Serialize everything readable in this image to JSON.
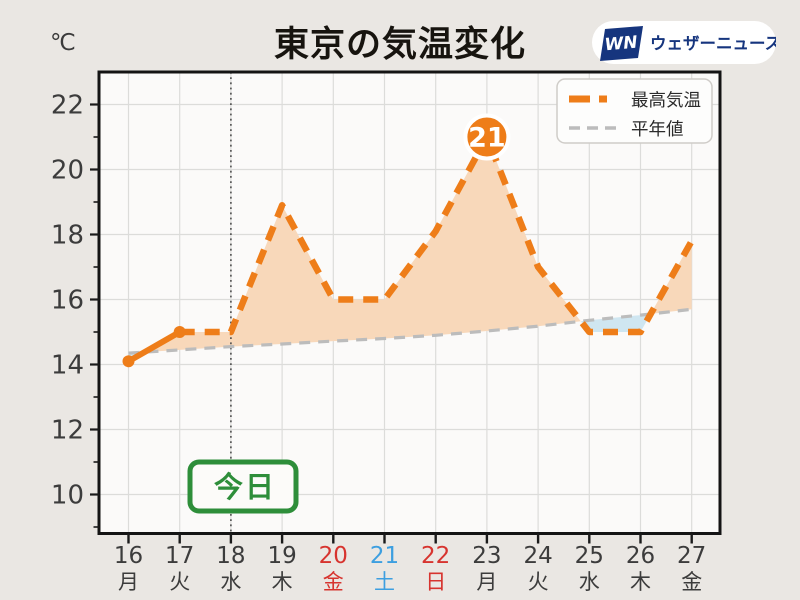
{
  "page": {
    "background": "#eae7e3"
  },
  "header": {
    "unit": "℃",
    "title": "東京の気温変化",
    "logo": {
      "mark": "WN",
      "brand": "ウェザーニュース",
      "brand_color": "#16357e"
    }
  },
  "chart_data": {
    "type": "line",
    "title": "東京の気温変化",
    "unit": "℃",
    "legend_position": "top-right",
    "grid": true,
    "x_labels": [
      {
        "date": "16",
        "day": "月",
        "color": "#3c3c3c"
      },
      {
        "date": "17",
        "day": "火",
        "color": "#3c3c3c"
      },
      {
        "date": "18",
        "day": "水",
        "color": "#3c3c3c"
      },
      {
        "date": "19",
        "day": "木",
        "color": "#3c3c3c"
      },
      {
        "date": "20",
        "day": "金",
        "color": "#d7342f"
      },
      {
        "date": "21",
        "day": "土",
        "color": "#3d9fe0"
      },
      {
        "date": "22",
        "day": "日",
        "color": "#d7342f"
      },
      {
        "date": "23",
        "day": "月",
        "color": "#3c3c3c"
      },
      {
        "date": "24",
        "day": "火",
        "color": "#3c3c3c"
      },
      {
        "date": "25",
        "day": "水",
        "color": "#3c3c3c"
      },
      {
        "date": "26",
        "day": "木",
        "color": "#3c3c3c"
      },
      {
        "date": "27",
        "day": "金",
        "color": "#3c3c3c"
      }
    ],
    "series": [
      {
        "name": "最高気温",
        "color": "#ee7d19",
        "style": "dashed",
        "solid_through_index": 1,
        "values": [
          14.1,
          15.0,
          15.0,
          18.9,
          16.0,
          16.0,
          18.1,
          21.0,
          17.0,
          15.0,
          15.0,
          17.8
        ]
      },
      {
        "name": "平年値",
        "color": "#bcbcbc",
        "style": "dashed",
        "values": [
          14.35,
          14.45,
          14.55,
          14.63,
          14.72,
          14.8,
          14.9,
          15.03,
          15.18,
          15.36,
          15.52,
          15.7
        ]
      }
    ],
    "yticks": [
      10,
      12,
      14,
      16,
      18,
      20,
      22
    ],
    "ylim": [
      8.8,
      23
    ],
    "fill_above_color": "#f8d8ba",
    "fill_below_color": "#cfe6f1",
    "today": {
      "index": 2,
      "label": "今日",
      "color": "#2e8e3a"
    },
    "peak": {
      "index": 7,
      "label": "21",
      "badge_color": "#ee7d19",
      "text_color": "#ffffff"
    }
  }
}
